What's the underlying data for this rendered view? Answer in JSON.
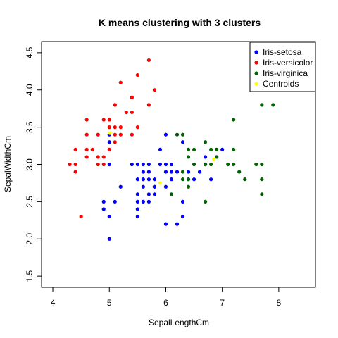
{
  "chart_data": {
    "type": "scatter",
    "title": "K means clustering with 3 clusters",
    "xlabel": "SepalLengthCm",
    "ylabel": "SepalWidthCm",
    "xlim": [
      3.8,
      8.65
    ],
    "ylim": [
      1.35,
      4.65
    ],
    "x_ticks": [
      4,
      5,
      6,
      7,
      8
    ],
    "y_ticks": [
      1.5,
      2.0,
      2.5,
      3.0,
      3.5,
      4.0,
      4.5
    ],
    "y_tick_labels": [
      "1.5",
      "2.0",
      "2.5",
      "3.0",
      "3.5",
      "4.0",
      "4.5"
    ],
    "grid": false,
    "legend_position": "top-right",
    "series": [
      {
        "name": "Iris-setosa",
        "color": "#0000FF",
        "points": [
          [
            5.0,
            3.4
          ],
          [
            5.0,
            3.3
          ],
          [
            5.0,
            3.0
          ],
          [
            5.0,
            2.3
          ],
          [
            5.0,
            2.0
          ],
          [
            4.9,
            2.5
          ],
          [
            4.9,
            2.4
          ],
          [
            5.1,
            2.5
          ],
          [
            5.2,
            2.7
          ],
          [
            5.4,
            3.0
          ],
          [
            5.5,
            3.0
          ],
          [
            5.5,
            2.8
          ],
          [
            5.5,
            2.6
          ],
          [
            5.5,
            2.5
          ],
          [
            5.5,
            2.4
          ],
          [
            5.5,
            2.3
          ],
          [
            5.6,
            3.0
          ],
          [
            5.6,
            2.9
          ],
          [
            5.6,
            2.8
          ],
          [
            5.6,
            2.7
          ],
          [
            5.6,
            2.5
          ],
          [
            5.7,
            3.0
          ],
          [
            5.7,
            2.9
          ],
          [
            5.7,
            2.8
          ],
          [
            5.7,
            2.6
          ],
          [
            5.7,
            2.5
          ],
          [
            5.8,
            2.8
          ],
          [
            5.8,
            2.7
          ],
          [
            5.8,
            2.6
          ],
          [
            5.8,
            2.7
          ],
          [
            5.9,
            3.2
          ],
          [
            5.9,
            3.0
          ],
          [
            6.0,
            3.4
          ],
          [
            6.0,
            3.0
          ],
          [
            6.0,
            2.9
          ],
          [
            6.0,
            2.7
          ],
          [
            6.0,
            2.2
          ],
          [
            6.1,
            3.0
          ],
          [
            6.1,
            2.9
          ],
          [
            6.1,
            2.8
          ],
          [
            6.2,
            2.9
          ],
          [
            6.2,
            2.2
          ],
          [
            6.3,
            3.3
          ],
          [
            6.3,
            2.5
          ],
          [
            6.3,
            2.3
          ],
          [
            6.4,
            2.9
          ],
          [
            6.4,
            2.8
          ],
          [
            6.5,
            2.8
          ],
          [
            6.6,
            2.9
          ],
          [
            6.7,
            3.1
          ],
          [
            6.7,
            3.0
          ],
          [
            6.8,
            2.8
          ],
          [
            6.9,
            3.1
          ],
          [
            7.0,
            3.2
          ]
        ]
      },
      {
        "name": "Iris-versicolor",
        "color": "#FF0000",
        "points": [
          [
            4.3,
            3.0
          ],
          [
            4.4,
            3.2
          ],
          [
            4.4,
            3.0
          ],
          [
            4.4,
            2.9
          ],
          [
            4.5,
            2.3
          ],
          [
            4.6,
            3.6
          ],
          [
            4.6,
            3.4
          ],
          [
            4.6,
            3.2
          ],
          [
            4.6,
            3.1
          ],
          [
            4.7,
            3.2
          ],
          [
            4.8,
            3.4
          ],
          [
            4.8,
            3.1
          ],
          [
            4.8,
            3.0
          ],
          [
            4.9,
            3.1
          ],
          [
            4.9,
            3.0
          ],
          [
            4.9,
            3.6
          ],
          [
            5.0,
            3.6
          ],
          [
            5.0,
            3.5
          ],
          [
            5.0,
            3.2
          ],
          [
            5.1,
            3.8
          ],
          [
            5.1,
            3.5
          ],
          [
            5.1,
            3.3
          ],
          [
            5.1,
            3.4
          ],
          [
            5.2,
            4.1
          ],
          [
            5.2,
            3.5
          ],
          [
            5.2,
            3.4
          ],
          [
            5.3,
            3.7
          ],
          [
            5.4,
            3.9
          ],
          [
            5.4,
            3.7
          ],
          [
            5.4,
            3.4
          ],
          [
            5.5,
            4.2
          ],
          [
            5.5,
            3.5
          ],
          [
            5.7,
            4.4
          ],
          [
            5.7,
            3.8
          ],
          [
            5.8,
            4.0
          ],
          [
            5.1,
            3.8
          ],
          [
            5.4,
            3.9
          ]
        ]
      },
      {
        "name": "Iris-virginica",
        "color": "#006400",
        "points": [
          [
            6.1,
            2.6
          ],
          [
            6.2,
            3.4
          ],
          [
            6.3,
            3.4
          ],
          [
            6.3,
            2.9
          ],
          [
            6.3,
            2.8
          ],
          [
            6.4,
            3.2
          ],
          [
            6.4,
            3.1
          ],
          [
            6.4,
            2.8
          ],
          [
            6.4,
            2.7
          ],
          [
            6.5,
            3.2
          ],
          [
            6.5,
            3.0
          ],
          [
            6.7,
            3.3
          ],
          [
            6.7,
            3.0
          ],
          [
            6.7,
            2.5
          ],
          [
            6.8,
            3.2
          ],
          [
            6.8,
            3.0
          ],
          [
            6.9,
            3.2
          ],
          [
            6.9,
            3.1
          ],
          [
            7.1,
            3.0
          ],
          [
            7.2,
            3.6
          ],
          [
            7.2,
            3.2
          ],
          [
            7.2,
            3.0
          ],
          [
            7.3,
            2.9
          ],
          [
            7.4,
            2.8
          ],
          [
            7.6,
            3.0
          ],
          [
            7.7,
            3.8
          ],
          [
            7.7,
            3.0
          ],
          [
            7.7,
            2.8
          ],
          [
            7.7,
            2.6
          ],
          [
            7.9,
            3.8
          ]
        ]
      },
      {
        "name": "Centroids",
        "color": "#FFFF00",
        "points": [
          [
            5.01,
            3.42
          ],
          [
            5.9,
            2.75
          ],
          [
            6.85,
            3.07
          ]
        ]
      }
    ]
  }
}
